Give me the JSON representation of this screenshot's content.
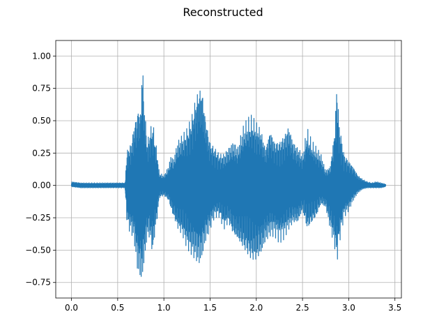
{
  "chart_data": {
    "type": "line",
    "title": "Reconstructed",
    "xlabel": "",
    "ylabel": "",
    "xlim": [
      -0.17,
      3.57
    ],
    "ylim": [
      -0.87,
      1.12
    ],
    "grid": true,
    "line_color": "#1f77b4",
    "x_ticks": [
      0.0,
      0.5,
      1.0,
      1.5,
      2.0,
      2.5,
      3.0,
      3.5
    ],
    "x_tick_labels": [
      "0.0",
      "0.5",
      "1.0",
      "1.5",
      "2.0",
      "2.5",
      "3.0",
      "3.5"
    ],
    "y_ticks": [
      -0.75,
      -0.5,
      -0.25,
      0.0,
      0.25,
      0.5,
      0.75,
      1.0
    ],
    "y_tick_labels": [
      "−0.75",
      "−0.50",
      "−0.25",
      "0.00",
      "0.25",
      "0.50",
      "0.75",
      "1.00"
    ],
    "series": [
      {
        "x": [
          0.0,
          0.1,
          0.2,
          0.3,
          0.4,
          0.5,
          0.58,
          0.6,
          0.62,
          0.65,
          0.68,
          0.7,
          0.72,
          0.75,
          0.76,
          0.77,
          0.78,
          0.8,
          0.82,
          0.85,
          0.88,
          0.9,
          0.93,
          0.95,
          1.0,
          1.05,
          1.08,
          1.1,
          1.15,
          1.2,
          1.25,
          1.3,
          1.35,
          1.38,
          1.4,
          1.42,
          1.45,
          1.5,
          1.55,
          1.6,
          1.65,
          1.7,
          1.75,
          1.8,
          1.85,
          1.9,
          1.95,
          2.0,
          2.05,
          2.1,
          2.15,
          2.2,
          2.25,
          2.3,
          2.35,
          2.4,
          2.45,
          2.5,
          2.55,
          2.6,
          2.65,
          2.7,
          2.75,
          2.8,
          2.85,
          2.87,
          2.9,
          2.95,
          3.0,
          3.05,
          3.1,
          3.15,
          3.2,
          3.25,
          3.3,
          3.35,
          3.4
        ],
        "upper": [
          0.03,
          0.02,
          0.02,
          0.02,
          0.02,
          0.02,
          0.02,
          0.28,
          0.3,
          0.35,
          0.5,
          0.55,
          0.62,
          0.6,
          0.9,
          1.03,
          0.75,
          0.55,
          0.35,
          0.45,
          0.5,
          0.4,
          0.25,
          0.1,
          0.08,
          0.15,
          0.25,
          0.2,
          0.35,
          0.4,
          0.45,
          0.55,
          0.72,
          0.78,
          0.8,
          0.75,
          0.55,
          0.35,
          0.3,
          0.25,
          0.25,
          0.3,
          0.35,
          0.3,
          0.45,
          0.52,
          0.55,
          0.5,
          0.45,
          0.3,
          0.45,
          0.35,
          0.35,
          0.4,
          0.48,
          0.35,
          0.3,
          0.25,
          0.45,
          0.35,
          0.3,
          0.25,
          0.12,
          0.15,
          0.45,
          0.82,
          0.48,
          0.25,
          0.2,
          0.15,
          0.08,
          0.05,
          0.03,
          0.02,
          0.03,
          0.02,
          0.01
        ],
        "lower": [
          -0.01,
          -0.02,
          -0.02,
          -0.02,
          -0.02,
          -0.02,
          -0.02,
          -0.3,
          -0.35,
          -0.38,
          -0.45,
          -0.6,
          -0.7,
          -0.74,
          -0.78,
          -0.72,
          -0.65,
          -0.55,
          -0.4,
          -0.42,
          -0.55,
          -0.4,
          -0.25,
          -0.1,
          -0.08,
          -0.12,
          -0.2,
          -0.25,
          -0.35,
          -0.4,
          -0.5,
          -0.55,
          -0.6,
          -0.63,
          -0.6,
          -0.55,
          -0.45,
          -0.35,
          -0.25,
          -0.25,
          -0.35,
          -0.3,
          -0.4,
          -0.45,
          -0.5,
          -0.55,
          -0.6,
          -0.6,
          -0.55,
          -0.45,
          -0.4,
          -0.4,
          -0.45,
          -0.42,
          -0.35,
          -0.3,
          -0.3,
          -0.2,
          -0.35,
          -0.3,
          -0.25,
          -0.15,
          -0.18,
          -0.35,
          -0.5,
          -0.62,
          -0.45,
          -0.25,
          -0.2,
          -0.12,
          -0.06,
          -0.03,
          -0.02,
          -0.02,
          -0.02,
          -0.02,
          -0.01
        ]
      }
    ]
  }
}
